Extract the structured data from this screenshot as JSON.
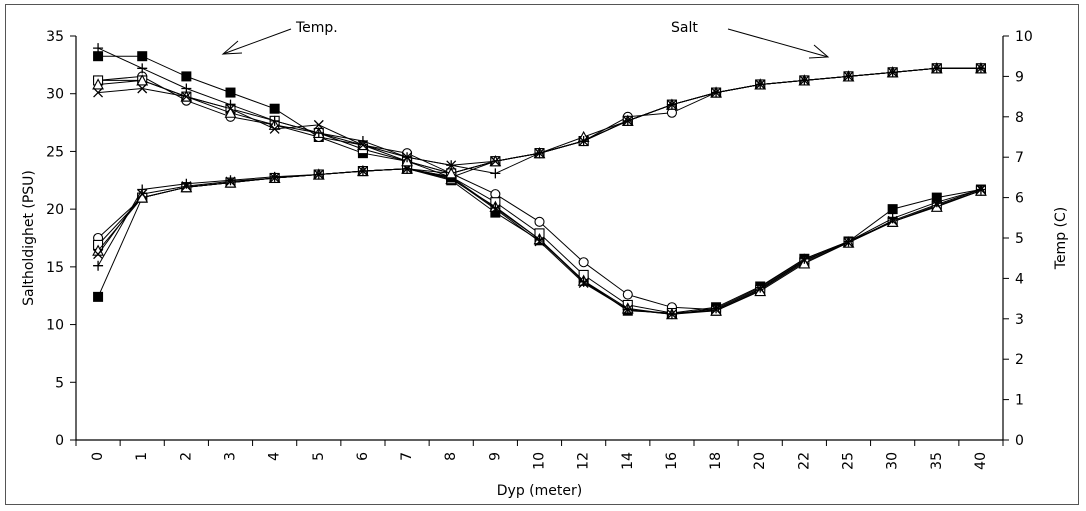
{
  "chart_data": {
    "type": "line",
    "title": "",
    "xlabel": "Dyp (meter)",
    "ylabel": "Saltholdighet (PSU)",
    "y2label": "Temp (C)",
    "categories": [
      "0",
      "1",
      "2",
      "3",
      "4",
      "5",
      "6",
      "7",
      "8",
      "9",
      "10",
      "12",
      "14",
      "16",
      "18",
      "20",
      "22",
      "25",
      "30",
      "35",
      "40"
    ],
    "ylim": [
      0,
      35
    ],
    "y2lim": [
      0,
      10
    ],
    "yticks": [
      "0",
      "5",
      "10",
      "15",
      "20",
      "25",
      "30",
      "35"
    ],
    "y2ticks": [
      "0",
      "1",
      "2",
      "3",
      "4",
      "5",
      "6",
      "7",
      "8",
      "9",
      "10"
    ],
    "grid": false,
    "legend": "none",
    "annotations": [
      {
        "text": "Temp.",
        "points_to": "temperature curves"
      },
      {
        "text": "Salt",
        "points_to": "salinity curves"
      }
    ],
    "salt_series": [
      {
        "marker": "square-filled",
        "values": [
          12.4,
          21.0,
          21.9,
          22.3,
          22.7,
          23.0,
          23.3,
          23.5,
          22.5,
          19.7,
          17.3,
          13.8,
          11.2,
          11.0,
          11.5,
          13.3,
          15.7,
          17.2,
          20.0,
          21.0,
          21.7
        ]
      },
      {
        "marker": "circle-open",
        "values": [
          17.5,
          21.0,
          21.9,
          22.3,
          22.7,
          23.0,
          23.3,
          23.5,
          23.1,
          21.3,
          18.9,
          15.4,
          12.6,
          11.5,
          11.3,
          13.1,
          15.5,
          17.2,
          18.9,
          20.3,
          21.6
        ]
      },
      {
        "marker": "square-open",
        "values": [
          16.9,
          21.0,
          21.9,
          22.3,
          22.7,
          23.0,
          23.3,
          23.5,
          22.8,
          20.6,
          17.9,
          14.3,
          11.7,
          11.0,
          11.2,
          13.0,
          15.4,
          17.1,
          18.9,
          20.3,
          21.6
        ]
      },
      {
        "marker": "triangle-open",
        "values": [
          16.4,
          21.0,
          21.9,
          22.3,
          22.7,
          23.0,
          23.3,
          23.5,
          22.6,
          20.2,
          17.4,
          13.8,
          11.4,
          10.9,
          11.2,
          12.9,
          15.3,
          17.1,
          18.9,
          20.2,
          21.6
        ]
      },
      {
        "marker": "cross-x",
        "values": [
          16.1,
          21.3,
          22.0,
          22.4,
          22.7,
          23.0,
          23.3,
          23.5,
          22.7,
          20.0,
          17.2,
          13.6,
          11.3,
          10.9,
          11.3,
          13.1,
          15.6,
          17.1,
          19.0,
          20.4,
          21.7
        ]
      },
      {
        "marker": "plus",
        "values": [
          15.1,
          21.7,
          22.2,
          22.5,
          22.8,
          23.0,
          23.3,
          23.5,
          22.8,
          20.1,
          17.4,
          13.7,
          11.3,
          10.9,
          11.4,
          13.2,
          15.7,
          17.2,
          19.2,
          20.6,
          21.7
        ]
      }
    ],
    "temp_series": [
      {
        "marker": "square-filled",
        "values": [
          9.5,
          9.5,
          9.0,
          8.6,
          8.2,
          7.5,
          7.1,
          6.9,
          6.5,
          6.9,
          7.1,
          7.4,
          7.9,
          8.3,
          8.6,
          8.8,
          8.9,
          9.0,
          9.1,
          9.2,
          9.2
        ]
      },
      {
        "marker": "circle-open",
        "values": [
          8.9,
          9.0,
          8.4,
          8.0,
          7.8,
          7.5,
          7.3,
          7.1,
          6.6,
          6.9,
          7.1,
          7.4,
          8.0,
          8.1,
          8.6,
          8.8,
          8.9,
          9.0,
          9.1,
          9.2,
          9.2
        ]
      },
      {
        "marker": "square-open",
        "values": [
          8.9,
          8.9,
          8.5,
          8.2,
          7.9,
          7.6,
          7.2,
          6.9,
          6.6,
          6.9,
          7.1,
          7.4,
          7.9,
          8.3,
          8.6,
          8.8,
          8.9,
          9.0,
          9.1,
          9.2,
          9.2
        ]
      },
      {
        "marker": "triangle-open",
        "values": [
          8.8,
          8.9,
          8.5,
          8.1,
          7.8,
          7.6,
          7.3,
          6.9,
          6.6,
          6.9,
          7.1,
          7.5,
          7.9,
          8.3,
          8.6,
          8.8,
          8.9,
          9.0,
          9.1,
          9.2,
          9.2
        ]
      },
      {
        "marker": "cross-x",
        "values": [
          8.6,
          8.7,
          8.5,
          8.2,
          7.7,
          7.8,
          7.3,
          7.0,
          6.8,
          6.9,
          7.1,
          7.4,
          7.9,
          8.3,
          8.6,
          8.8,
          8.9,
          9.0,
          9.1,
          9.2,
          9.2
        ]
      },
      {
        "marker": "plus",
        "values": [
          9.7,
          9.2,
          8.7,
          8.3,
          7.9,
          7.6,
          7.4,
          7.0,
          6.8,
          6.6,
          7.1,
          7.4,
          7.9,
          8.3,
          8.6,
          8.8,
          8.9,
          9.0,
          9.1,
          9.2,
          9.2
        ]
      }
    ]
  }
}
